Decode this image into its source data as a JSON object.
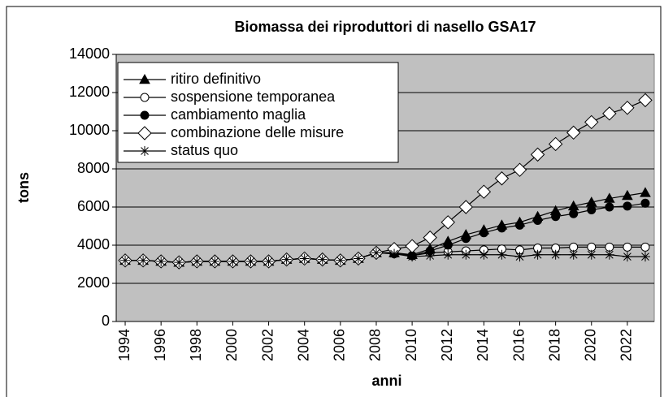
{
  "chart_data": {
    "type": "line",
    "title": "Biomassa dei riproduttori di nasello GSA17",
    "x_label": "anni",
    "y_label": "tons",
    "x": [
      1994,
      1995,
      1996,
      1997,
      1998,
      1999,
      2000,
      2001,
      2002,
      2003,
      2004,
      2005,
      2006,
      2007,
      2008,
      2009,
      2010,
      2011,
      2012,
      2013,
      2014,
      2015,
      2016,
      2017,
      2018,
      2019,
      2020,
      2021,
      2022,
      2023
    ],
    "xlim": [
      1993.5,
      2023.5
    ],
    "xticks": [
      1994,
      1996,
      1998,
      2000,
      2002,
      2004,
      2006,
      2008,
      2010,
      2012,
      2014,
      2016,
      2018,
      2020,
      2022
    ],
    "ylim": [
      0,
      14000
    ],
    "yticks": [
      0,
      2000,
      4000,
      6000,
      8000,
      10000,
      12000,
      14000
    ],
    "grid": true,
    "legend": "upper left",
    "series": [
      {
        "name": "ritiro definitivo",
        "color": "#000000",
        "marker": "triangle",
        "values": [
          3200,
          3200,
          3150,
          3100,
          3150,
          3150,
          3150,
          3150,
          3150,
          3250,
          3300,
          3250,
          3200,
          3300,
          3600,
          3600,
          3500,
          3800,
          4200,
          4550,
          4800,
          5050,
          5200,
          5500,
          5800,
          6050,
          6250,
          6450,
          6600,
          6750
        ]
      },
      {
        "name": "sospensione temporanea",
        "color": "#000000",
        "marker": "circle-open",
        "values": [
          3200,
          3200,
          3150,
          3100,
          3150,
          3150,
          3150,
          3150,
          3150,
          3250,
          3300,
          3250,
          3200,
          3300,
          3600,
          3600,
          3450,
          3600,
          3650,
          3700,
          3750,
          3800,
          3750,
          3850,
          3850,
          3900,
          3900,
          3900,
          3900,
          3900
        ]
      },
      {
        "name": "cambiamento maglia",
        "color": "#000000",
        "marker": "circle",
        "values": [
          3200,
          3200,
          3150,
          3100,
          3150,
          3150,
          3150,
          3150,
          3150,
          3250,
          3300,
          3250,
          3200,
          3300,
          3600,
          3550,
          3450,
          3700,
          4000,
          4350,
          4650,
          4900,
          5050,
          5300,
          5500,
          5650,
          5850,
          6000,
          6050,
          6200
        ]
      },
      {
        "name": "combinazione delle misure",
        "color": "#000000",
        "marker": "diamond-open",
        "values": [
          3200,
          3200,
          3150,
          3100,
          3150,
          3150,
          3150,
          3150,
          3150,
          3250,
          3300,
          3250,
          3200,
          3300,
          3600,
          3800,
          3950,
          4400,
          5200,
          6000,
          6800,
          7500,
          7950,
          8750,
          9300,
          9900,
          10450,
          10900,
          11200,
          11600
        ]
      },
      {
        "name": "status quo",
        "color": "#000000",
        "marker": "asterisk",
        "values": [
          3200,
          3200,
          3150,
          3100,
          3150,
          3150,
          3150,
          3150,
          3150,
          3250,
          3300,
          3250,
          3200,
          3300,
          3600,
          3550,
          3400,
          3450,
          3500,
          3500,
          3500,
          3500,
          3400,
          3500,
          3500,
          3500,
          3500,
          3500,
          3400,
          3400
        ]
      }
    ]
  }
}
